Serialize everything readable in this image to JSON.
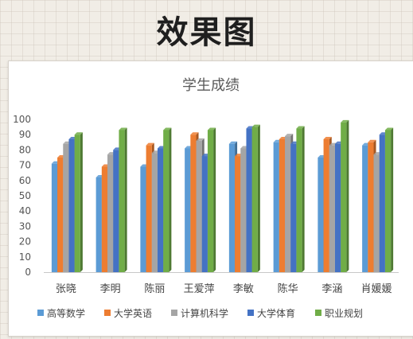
{
  "page": {
    "banner_title": "效果图"
  },
  "chart_data": {
    "type": "bar",
    "title": "学生成绩",
    "xlabel": "",
    "ylabel": "",
    "ylim": [
      0,
      100
    ],
    "yticks": [
      0,
      10,
      20,
      30,
      40,
      50,
      60,
      70,
      80,
      90,
      100
    ],
    "grid": false,
    "legend": "bottom",
    "categories": [
      "张晓",
      "李明",
      "陈丽",
      "王爱萍",
      "李敏",
      "陈华",
      "李涵",
      "肖媛媛"
    ],
    "series": [
      {
        "name": "高等数学",
        "color": "#5b9bd5",
        "values": [
          71,
          62,
          69,
          81,
          84,
          85,
          75,
          83
        ]
      },
      {
        "name": "大学英语",
        "color": "#ed7d31",
        "values": [
          75,
          69,
          83,
          90,
          76,
          87,
          87,
          85
        ]
      },
      {
        "name": "计算机科学",
        "color": "#a5a5a5",
        "values": [
          84,
          77,
          78,
          86,
          81,
          89,
          83,
          77
        ]
      },
      {
        "name": "大学体育",
        "color": "#4472c4",
        "values": [
          87,
          80,
          81,
          76,
          94,
          84,
          84,
          90
        ]
      },
      {
        "name": "职业规划",
        "color": "#70ad47",
        "values": [
          90,
          93,
          93,
          93,
          95,
          94,
          98,
          93
        ]
      }
    ]
  }
}
